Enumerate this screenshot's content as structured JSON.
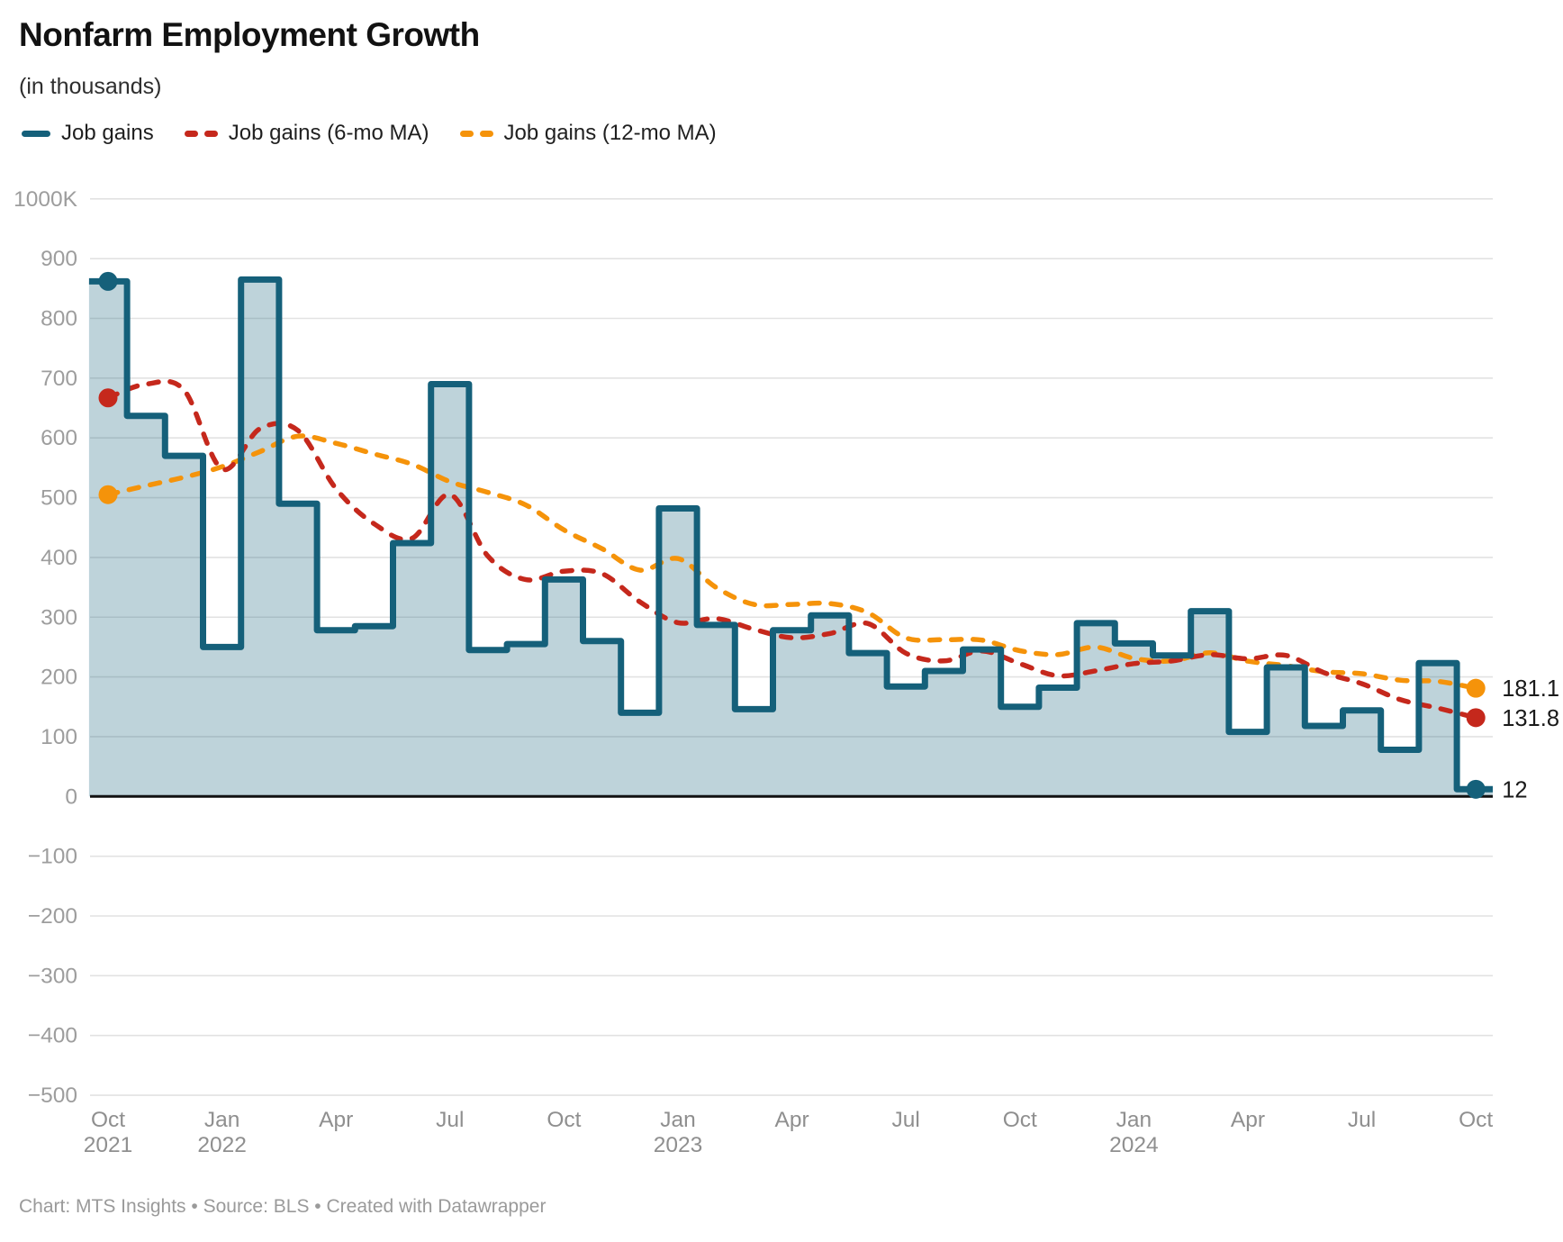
{
  "header": {
    "title": "Nonfarm Employment Growth",
    "subtitle": "(in thousands)"
  },
  "footer": "Chart: MTS Insights • Source: BLS • Created with Datawrapper",
  "colors": {
    "job_gains": "#15607a",
    "job_gains_fill_opacity": 0.28,
    "ma6": "#c5281c",
    "ma12": "#f5930a",
    "grid": "#e2e2e2",
    "zero_line": "#111111",
    "axis_text": "#9d9d9d",
    "label_text": "#1a1a1a"
  },
  "chart_data": {
    "type": "line",
    "step_series_interpolation": "step-center",
    "ma_series_interpolation": "smooth",
    "title": "Nonfarm Employment Growth",
    "subtitle": "(in thousands)",
    "ylim": [
      -500,
      1000
    ],
    "grid": "horizontal",
    "legend_position": "top-left",
    "months": [
      "Oct 2021",
      "Nov 2021",
      "Dec 2021",
      "Jan 2022",
      "Feb 2022",
      "Mar 2022",
      "Apr 2022",
      "May 2022",
      "Jun 2022",
      "Jul 2022",
      "Aug 2022",
      "Sep 2022",
      "Oct 2022",
      "Nov 2022",
      "Dec 2022",
      "Jan 2023",
      "Feb 2023",
      "Mar 2023",
      "Apr 2023",
      "May 2023",
      "Jun 2023",
      "Jul 2023",
      "Aug 2023",
      "Sep 2023",
      "Oct 2023",
      "Nov 2023",
      "Dec 2023",
      "Jan 2024",
      "Feb 2024",
      "Mar 2024",
      "Apr 2024",
      "May 2024",
      "Jun 2024",
      "Jul 2024",
      "Aug 2024",
      "Sep 2024",
      "Oct 2024"
    ],
    "series": [
      {
        "name": "Job gains",
        "style": "step-area",
        "color": "#15607a",
        "values": [
          862,
          637,
          570,
          250,
          865,
          490,
          278,
          285,
          424,
          690,
          245,
          255,
          363,
          260,
          140,
          482,
          287,
          146,
          278,
          303,
          240,
          184,
          210,
          246,
          150,
          182,
          290,
          256,
          236,
          310,
          108,
          216,
          118,
          144,
          78,
          223,
          12
        ]
      },
      {
        "name": "Job gains (6-mo MA)",
        "style": "dashed",
        "color": "#c5281c",
        "values": [
          667,
          690,
          680,
          548,
          615.5,
          612.3,
          515,
          456.3,
          432,
          505.3,
          402,
          362.8,
          377,
          372.8,
          325.5,
          290.8,
          297.8,
          279.7,
          265.5,
          272.7,
          289.3,
          239.7,
          226.8,
          243.5,
          222.2,
          202,
          210.3,
          222.3,
          226.7,
          237.3,
          230.3,
          236,
          207.3,
          188.7,
          162.3,
          147.8,
          131.8
        ]
      },
      {
        "name": "Job gains (12-mo MA)",
        "style": "dashed",
        "color": "#f5930a",
        "values": [
          505,
          520,
          534.2,
          551.7,
          577.1,
          602.9,
          591,
          573.2,
          556,
          526.7,
          508.8,
          487.6,
          446,
          414.6,
          378.8,
          398.1,
          349.9,
          321.3,
          321.3,
          322.8,
          307.4,
          265.3,
          262.4,
          261.6,
          243.9,
          237.4,
          249.9,
          231,
          226.8,
          240.4,
          226.3,
          219,
          208.8,
          205.5,
          194.5,
          192.6,
          181.1
        ]
      }
    ],
    "end_labels": [
      "181.1",
      "131.8",
      "12"
    ],
    "y_ticks": [
      {
        "v": 1000,
        "label": "1000K"
      },
      {
        "v": 900,
        "label": "900"
      },
      {
        "v": 800,
        "label": "800"
      },
      {
        "v": 700,
        "label": "700"
      },
      {
        "v": 600,
        "label": "600"
      },
      {
        "v": 500,
        "label": "500"
      },
      {
        "v": 400,
        "label": "400"
      },
      {
        "v": 300,
        "label": "300"
      },
      {
        "v": 200,
        "label": "200"
      },
      {
        "v": 100,
        "label": "100"
      },
      {
        "v": 0,
        "label": "0"
      },
      {
        "v": -100,
        "label": "−100"
      },
      {
        "v": -200,
        "label": "−200"
      },
      {
        "v": -300,
        "label": "−300"
      },
      {
        "v": -400,
        "label": "−400"
      },
      {
        "v": -500,
        "label": "−500"
      }
    ],
    "x_ticks": [
      {
        "i": 0,
        "month": "Oct",
        "year": "2021"
      },
      {
        "i": 3,
        "month": "Jan",
        "year": "2022"
      },
      {
        "i": 6,
        "month": "Apr",
        "year": ""
      },
      {
        "i": 9,
        "month": "Jul",
        "year": ""
      },
      {
        "i": 12,
        "month": "Oct",
        "year": ""
      },
      {
        "i": 15,
        "month": "Jan",
        "year": "2023"
      },
      {
        "i": 18,
        "month": "Apr",
        "year": ""
      },
      {
        "i": 21,
        "month": "Jul",
        "year": ""
      },
      {
        "i": 24,
        "month": "Oct",
        "year": ""
      },
      {
        "i": 27,
        "month": "Jan",
        "year": "2024"
      },
      {
        "i": 30,
        "month": "Apr",
        "year": ""
      },
      {
        "i": 33,
        "month": "Jul",
        "year": ""
      },
      {
        "i": 36,
        "month": "Oct",
        "year": ""
      }
    ]
  },
  "legend": {
    "items": [
      {
        "label": "Job gains",
        "color": "#15607a",
        "style": "solid"
      },
      {
        "label": "Job gains (6-mo MA)",
        "color": "#c5281c",
        "style": "dashed"
      },
      {
        "label": "Job gains (12-mo MA)",
        "color": "#f5930a",
        "style": "dashed"
      }
    ]
  }
}
